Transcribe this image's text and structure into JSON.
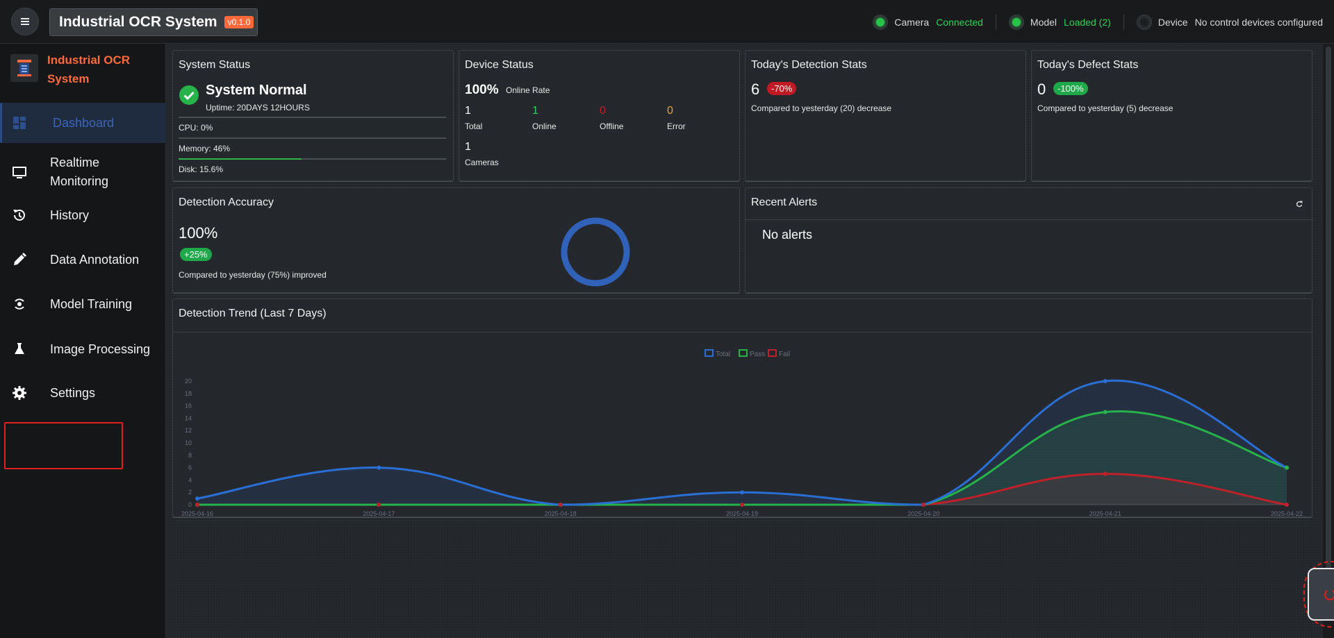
{
  "header": {
    "title": "Industrial OCR System",
    "version": "v0.1.0",
    "camera_label": "Camera",
    "camera_status": "Connected",
    "model_label": "Model",
    "model_status": "Loaded (2)",
    "device_label": "Device",
    "device_status": "No control devices configured"
  },
  "sidebar": {
    "brand": "Industrial OCR System",
    "items": [
      {
        "label": "Dashboard",
        "icon": "dashboard-icon",
        "active": true
      },
      {
        "label": "Realtime Monitoring",
        "icon": "monitor-icon"
      },
      {
        "label": "History",
        "icon": "history-icon"
      },
      {
        "label": "Data Annotation",
        "icon": "pencil-icon"
      },
      {
        "label": "Model Training",
        "icon": "training-icon"
      },
      {
        "label": "Image Processing",
        "icon": "flask-icon"
      },
      {
        "label": "Settings",
        "icon": "gear-icon"
      }
    ]
  },
  "system_status": {
    "title": "System Status",
    "state": "System Normal",
    "uptime": "Uptime: 20DAYS 12HOURS",
    "cpu_label": "CPU: 0%",
    "cpu": 0,
    "memory_label": "Memory: 46%",
    "memory": 46,
    "disk_label": "Disk: 15.6%",
    "disk": 15.6
  },
  "device_status": {
    "title": "Device Status",
    "rate": "100%",
    "rate_label": "Online Rate",
    "total": "1",
    "total_label": "Total",
    "online": "1",
    "online_label": "Online",
    "offline": "0",
    "offline_label": "Offline",
    "error": "0",
    "error_label": "Error",
    "cameras": "1",
    "cameras_label": "Cameras"
  },
  "detection_stats": {
    "title": "Today's Detection Stats",
    "value": "6",
    "badge": "-70%",
    "note": "Compared to yesterday (20) decrease"
  },
  "defect_stats": {
    "title": "Today's Defect Stats",
    "value": "0",
    "badge": "-100%",
    "note": "Compared to yesterday (5) decrease"
  },
  "accuracy": {
    "title": "Detection Accuracy",
    "value": "100%",
    "badge": "+25%",
    "note": "Compared to yesterday (75%) improved",
    "ratio": 1.0
  },
  "alerts": {
    "title": "Recent Alerts",
    "empty": "No alerts"
  },
  "trend": {
    "title": "Detection Trend (Last 7 Days)"
  },
  "colors": {
    "total": "#2a6fd6",
    "pass": "#27b24a",
    "fail": "#c0202a",
    "accent": "#ff6a3d"
  },
  "chart_data": {
    "type": "line",
    "categories": [
      "2025-04-16",
      "2025-04-17",
      "2025-04-18",
      "2025-04-19",
      "2025-04-20",
      "2025-04-21",
      "2025-04-22"
    ],
    "series": [
      {
        "name": "Total",
        "values": [
          1,
          6,
          0,
          2,
          0,
          20,
          6
        ]
      },
      {
        "name": "Pass",
        "values": [
          0,
          0,
          0,
          0,
          0,
          15,
          6
        ]
      },
      {
        "name": "Fail",
        "values": [
          0,
          0,
          0,
          0,
          0,
          5,
          0
        ]
      }
    ],
    "yticks": [
      "0",
      "2",
      "4",
      "6",
      "8",
      "10",
      "12",
      "14",
      "16",
      "18",
      "20"
    ],
    "ylim": [
      0,
      20
    ],
    "legend": "top-center",
    "grid": false
  }
}
